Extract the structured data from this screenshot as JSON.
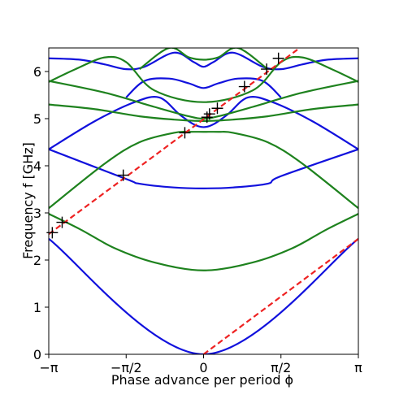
{
  "chart_data": {
    "type": "line",
    "xlabel": "Phase advance per period ϕ",
    "ylabel": "Frequency f [GHz]",
    "xlim": [
      -3.14159,
      3.14159
    ],
    "ylim": [
      0,
      6.5
    ],
    "x_ticks": [
      {
        "value": -3.14159,
        "label": "−π"
      },
      {
        "value": -1.5708,
        "label": "−π/2"
      },
      {
        "value": 0,
        "label": "0"
      },
      {
        "value": 1.5708,
        "label": "π/2"
      },
      {
        "value": 3.14159,
        "label": "π"
      }
    ],
    "y_ticks": [
      {
        "value": 0,
        "label": "0"
      },
      {
        "value": 1,
        "label": "1"
      },
      {
        "value": 2,
        "label": "2"
      },
      {
        "value": 3,
        "label": "3"
      },
      {
        "value": 4,
        "label": "4"
      },
      {
        "value": 5,
        "label": "5"
      },
      {
        "value": 6,
        "label": "6"
      }
    ],
    "grid": false,
    "colors": {
      "blue": "#1111dd",
      "green": "#1e821e",
      "red_dashed": "#ee2222",
      "markers": "#000000"
    },
    "series": [
      {
        "color": "blue",
        "x": [
          -3.14159,
          0,
          3.14159
        ],
        "y": [
          2.45,
          0,
          2.45
        ]
      },
      {
        "color": "blue",
        "x": [
          -3.14159,
          -1.571,
          -1.3,
          -0.6,
          0,
          0.6,
          1.3,
          1.571,
          3.14159
        ],
        "y": [
          4.35,
          3.72,
          3.62,
          3.54,
          3.52,
          3.54,
          3.62,
          3.78,
          4.35
        ]
      },
      {
        "color": "blue",
        "x": [
          -3.14159,
          -2.2,
          -1.4,
          -0.9,
          -0.5,
          -0.2,
          0,
          0.2,
          0.5,
          0.9,
          1.4,
          2.2,
          3.14159
        ],
        "y": [
          4.35,
          4.95,
          5.35,
          5.45,
          5.1,
          4.88,
          4.82,
          4.88,
          5.1,
          5.45,
          5.35,
          4.95,
          4.35
        ]
      },
      {
        "color": "blue",
        "x": [
          -1.571,
          -1.2,
          -0.7,
          -0.3,
          0,
          0.3,
          0.7,
          1.2,
          1.571
        ],
        "y": [
          5.45,
          5.8,
          5.85,
          5.75,
          5.65,
          5.75,
          5.85,
          5.8,
          5.45
        ]
      },
      {
        "color": "blue",
        "x": [
          -3.14159,
          -2.5,
          -2.0,
          -1.571,
          -1.2,
          -0.6,
          -0.2,
          0,
          0.2,
          0.6,
          1.2,
          1.571,
          2.0,
          2.5,
          3.14159
        ],
        "y": [
          6.28,
          6.25,
          6.15,
          6.05,
          6.1,
          6.4,
          6.2,
          6.1,
          6.2,
          6.4,
          6.1,
          6.05,
          6.15,
          6.25,
          6.28
        ]
      },
      {
        "color": "green",
        "x": [
          -3.14159,
          -2.5,
          -1.8,
          -1.0,
          0,
          1.0,
          1.8,
          2.5,
          3.14159
        ],
        "y": [
          2.98,
          2.65,
          2.25,
          1.95,
          1.78,
          1.95,
          2.25,
          2.65,
          2.98
        ]
      },
      {
        "color": "green",
        "x": [
          -3.14159,
          -2.0,
          -1.3,
          -0.6,
          -0.3,
          0,
          0.3,
          0.6,
          1.3,
          2.0,
          3.14159
        ],
        "y": [
          3.1,
          4.05,
          4.5,
          4.7,
          4.72,
          4.72,
          4.72,
          4.7,
          4.5,
          4.05,
          3.1
        ]
      },
      {
        "color": "green",
        "x": [
          -3.14159,
          -2.2,
          -1.3,
          -0.6,
          0,
          0.6,
          1.3,
          2.2,
          3.14159
        ],
        "y": [
          5.3,
          5.2,
          5.05,
          4.98,
          4.95,
          4.98,
          5.05,
          5.2,
          5.3
        ]
      },
      {
        "color": "green",
        "x": [
          -3.14159,
          -2.0,
          -1.0,
          -0.3,
          0,
          0.3,
          1.0,
          2.0,
          3.14159
        ],
        "y": [
          5.8,
          5.55,
          5.25,
          5.05,
          5.0,
          5.05,
          5.25,
          5.55,
          5.8
        ]
      },
      {
        "color": "green",
        "x": [
          -3.14159,
          -2.6,
          -2.0,
          -1.571,
          -1.0,
          0,
          1.0,
          1.571,
          2.0,
          2.6,
          3.14159
        ],
        "y": [
          5.78,
          6.05,
          6.3,
          6.2,
          5.6,
          5.35,
          5.6,
          6.2,
          6.3,
          6.05,
          5.78
        ]
      },
      {
        "color": "green",
        "x": [
          -1.3,
          -0.7,
          -0.3,
          0,
          0.3,
          0.7,
          1.3
        ],
        "y": [
          6.05,
          6.5,
          6.3,
          6.25,
          6.3,
          6.5,
          6.05
        ]
      },
      {
        "color": "red_dashed",
        "x": [
          -3.14159,
          1.95
        ],
        "y": [
          2.55,
          6.5
        ]
      },
      {
        "color": "red_dashed",
        "x": [
          0,
          3.14159
        ],
        "y": [
          0,
          2.45
        ]
      }
    ],
    "markers": {
      "x": [
        -3.07,
        -2.87,
        -1.63,
        -0.38,
        0.07,
        0.12,
        0.28,
        0.83,
        1.28,
        1.52
      ],
      "y": [
        2.58,
        2.8,
        3.8,
        4.7,
        5.03,
        5.1,
        5.22,
        5.68,
        6.05,
        6.28
      ]
    }
  }
}
